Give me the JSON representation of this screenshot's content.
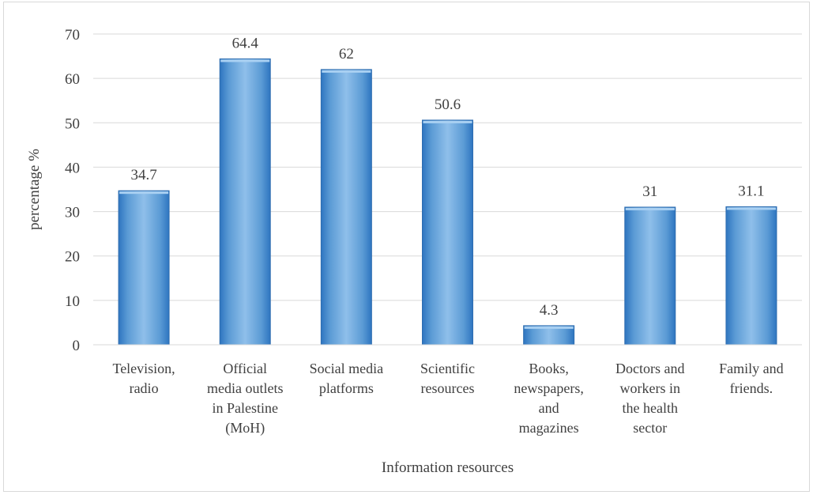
{
  "chart_data": {
    "type": "bar",
    "categories": [
      [
        "Television,",
        "radio"
      ],
      [
        "Official",
        "media outlets",
        "in Palestine",
        "(MoH)"
      ],
      [
        "Social media",
        "platforms"
      ],
      [
        "Scientific",
        "resources"
      ],
      [
        "Books,",
        "newspapers,",
        "and",
        "magazines"
      ],
      [
        "Doctors and",
        "workers in",
        "the health",
        "sector"
      ],
      [
        "Family and",
        "friends."
      ]
    ],
    "values": [
      34.7,
      64.4,
      62,
      50.6,
      4.3,
      31,
      31.1
    ],
    "data_labels": [
      "34.7",
      "64.4",
      "62",
      "50.6",
      "4.3",
      "31",
      "31.1"
    ],
    "xlabel": "Information resources",
    "ylabel": "percentage %",
    "ylim": [
      0,
      70
    ],
    "yticks": [
      "0",
      "10",
      "20",
      "30",
      "40",
      "50",
      "60",
      "70"
    ],
    "grid": true,
    "legend": "none",
    "colors": {
      "bar_fill_light": "#8fbfea",
      "bar_fill_mid": "#5b9bd5",
      "bar_fill_dark": "#2e75c0",
      "bar_edge": "#2f6db0",
      "gridline": "#d9d9d9",
      "text": "#404040"
    }
  }
}
